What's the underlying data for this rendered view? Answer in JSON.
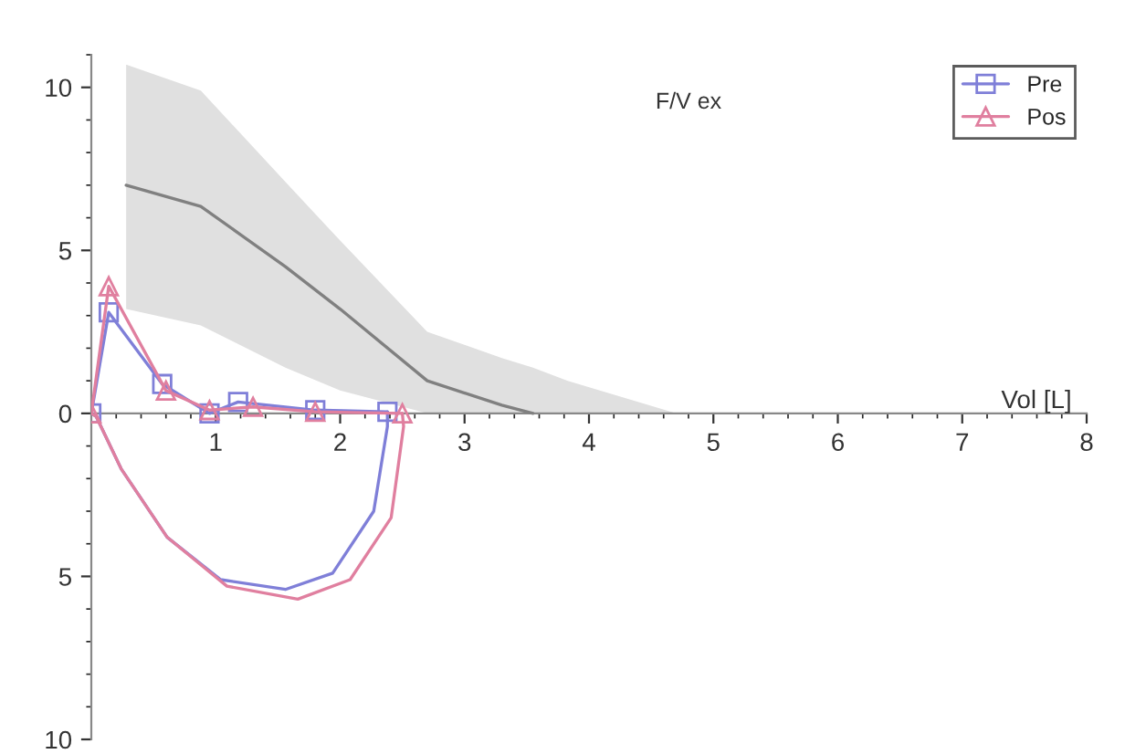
{
  "chart_data": {
    "type": "line",
    "xlabel": "Vol [L]",
    "annotations": [
      "F/V ex"
    ],
    "xlim": [
      0,
      8
    ],
    "ylim": [
      -10,
      11
    ],
    "xticks": [
      1,
      2,
      3,
      4,
      5,
      6,
      7,
      8
    ],
    "yticks": [
      {
        "value": -10,
        "label": "10"
      },
      {
        "value": -5,
        "label": "5"
      },
      0,
      5,
      10
    ],
    "legend": "top right",
    "grid": false,
    "series": [
      {
        "color": "#808080",
        "marker": "none",
        "x": [
          0.28,
          0.88,
          1.56,
          2.0,
          2.7,
          3.3,
          3.55,
          3.83,
          4.7
        ],
        "values": [
          7.0,
          6.35,
          4.5,
          3.2,
          1.0,
          0.25,
          0,
          null,
          null
        ],
        "lower": [
          3.2,
          2.7,
          1.4,
          0.7,
          0,
          0,
          0,
          0,
          0
        ],
        "upper": [
          10.7,
          9.9,
          7.1,
          5.3,
          2.5,
          1.7,
          1.4,
          1.0,
          0
        ]
      },
      {
        "name": "Pre",
        "color": "#7f7fd8",
        "marker": "square",
        "x": [
          0,
          0.14,
          0.57,
          0.95,
          1.18,
          1.8,
          2.38
        ],
        "values": [
          0,
          3.1,
          0.9,
          0.0,
          0.35,
          0.1,
          0.05
        ]
      },
      {
        "color": "#7f7fd8",
        "marker": "none",
        "x": [
          2.38,
          2.38,
          2.27,
          1.94,
          1.56,
          1.04,
          0.61,
          0.24,
          0.04,
          0
        ],
        "values": [
          0.05,
          -0.4,
          -3.0,
          -4.9,
          -5.4,
          -5.1,
          -3.8,
          -1.7,
          -0.1,
          0
        ]
      },
      {
        "name": "Pos",
        "color": "#e07f9f",
        "marker": "triangle",
        "x": [
          0,
          0.14,
          0.6,
          0.95,
          1.3,
          1.8,
          2.5
        ],
        "values": [
          0,
          3.9,
          0.7,
          0.1,
          0.2,
          0.05,
          0.0
        ]
      },
      {
        "color": "#e07f9f",
        "marker": "none",
        "x": [
          2.5,
          2.51,
          2.41,
          2.08,
          1.66,
          1.09,
          0.61,
          0.24,
          0.04,
          0
        ],
        "values": [
          0,
          -0.4,
          -3.2,
          -5.1,
          -5.7,
          -5.3,
          -3.8,
          -1.7,
          -0.1,
          0
        ]
      }
    ]
  }
}
